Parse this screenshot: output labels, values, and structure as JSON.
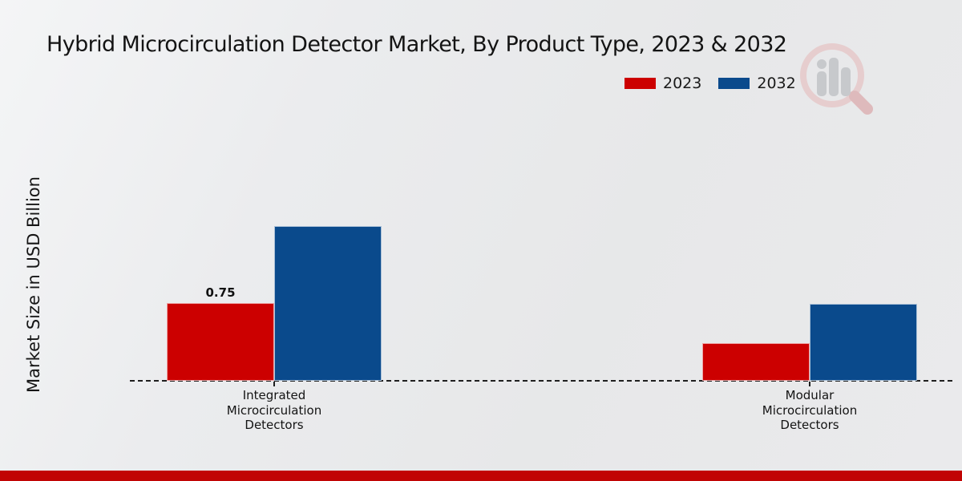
{
  "chart_data": {
    "type": "bar",
    "title": "Hybrid Microcirculation Detector Market, By Product Type, 2023 & 2032",
    "xlabel": "",
    "ylabel": "Market Size in USD Billion",
    "categories": [
      "Integrated\nMicrocirculation\nDetectors",
      "Modular\nMicrocirculation\nDetectors"
    ],
    "series": [
      {
        "name": "2023",
        "color": "#cc0000",
        "values": [
          0.75,
          0.36
        ]
      },
      {
        "name": "2032",
        "color": "#0a4a8c",
        "values": [
          1.49,
          0.74
        ]
      }
    ],
    "annotations": [
      {
        "text": "0.75",
        "category_index": 0,
        "series_index": 0
      }
    ],
    "ylim": [
      0,
      2.5
    ],
    "grid": false,
    "legend_position": "top-right",
    "baseline_style": "dashed"
  },
  "footer": {
    "accent_color": "#c10404"
  }
}
